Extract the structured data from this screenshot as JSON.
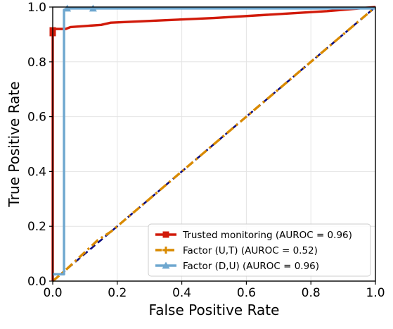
{
  "chart_data": {
    "type": "line",
    "xlabel": "False Positive Rate",
    "ylabel": "True Positive Rate",
    "xlim": [
      0.0,
      1.0
    ],
    "ylim": [
      0.0,
      1.0
    ],
    "xticks": [
      "0.0",
      "0.2",
      "0.4",
      "0.6",
      "0.8",
      "1.0"
    ],
    "yticks": [
      "0.0",
      "0.2",
      "0.4",
      "0.6",
      "0.8",
      "1.0"
    ],
    "grid": true,
    "legend_position": "bottom-right",
    "series": [
      {
        "name": "Trusted monitoring (AUROC = 0.96)",
        "color": "#d11a0a",
        "style": "solid",
        "marker": "square",
        "x": [
          0.0,
          0.0,
          0.0,
          0.0,
          0.04,
          0.055,
          0.15,
          0.18,
          0.5,
          0.85,
          1.0
        ],
        "y": [
          0.0,
          0.5,
          0.9,
          0.92,
          0.92,
          0.927,
          0.935,
          0.943,
          0.96,
          0.985,
          1.0
        ],
        "markers_x": [
          0.0,
          0.0
        ],
        "markers_y": [
          0.905,
          0.915
        ]
      },
      {
        "name": "Factor (U,T) (AUROC = 0.52)",
        "color": "#d98a00",
        "style": "dashdot",
        "marker": "plus",
        "x": [
          0.0,
          0.02,
          0.04,
          0.14,
          0.18,
          1.0
        ],
        "y": [
          0.0,
          0.02,
          0.04,
          0.15,
          0.18,
          1.0
        ],
        "markers_x": [],
        "markers_y": []
      },
      {
        "name": "Factor (D,U) (AUROC = 0.96)",
        "color": "#6ea7cf",
        "style": "solid",
        "marker": "triangle",
        "x": [
          0.0,
          0.035,
          0.035,
          0.045,
          0.125,
          1.0
        ],
        "y": [
          0.025,
          0.025,
          0.99,
          0.995,
          0.995,
          0.995
        ],
        "markers_x": [
          0.045,
          0.125
        ],
        "markers_y": [
          0.995,
          0.995
        ]
      }
    ],
    "reference_line": {
      "color": "#0a0a80",
      "style": "dashed",
      "x": [
        0.0,
        1.0
      ],
      "y": [
        0.0,
        1.0
      ]
    }
  }
}
